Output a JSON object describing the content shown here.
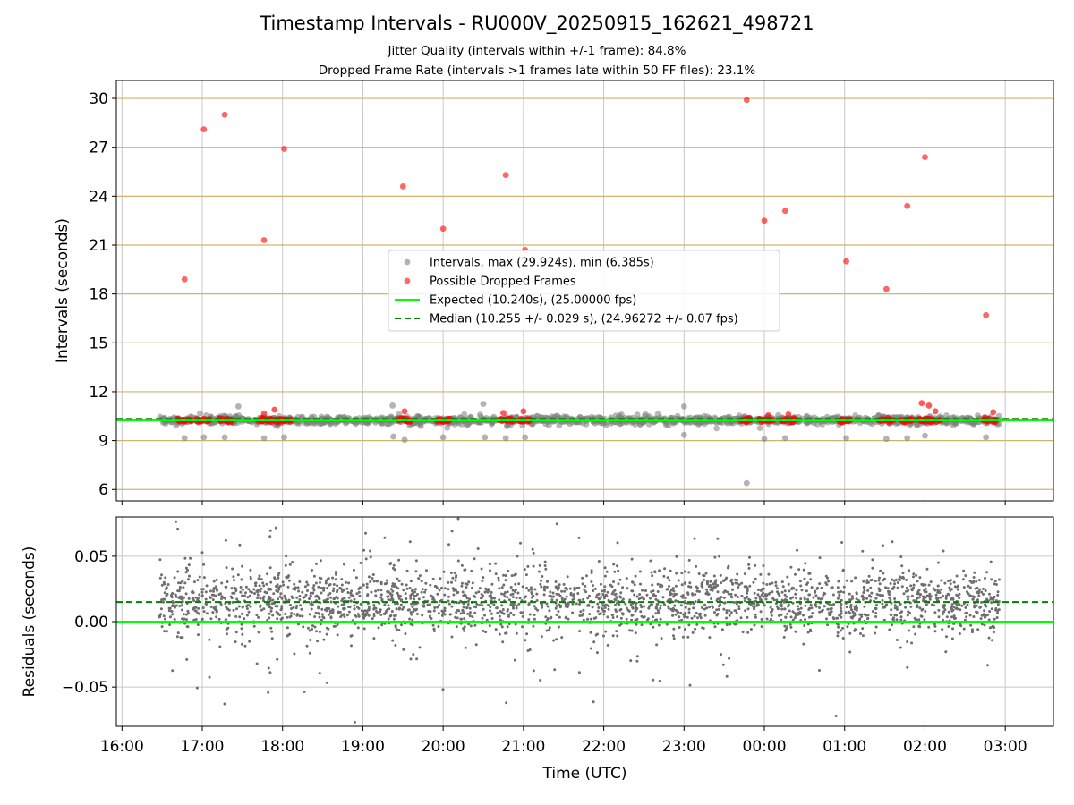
{
  "chart_data": [
    {
      "type": "scatter",
      "title": "Timestamp Intervals - RU000V_20250915_162621_498721",
      "subtitle_lines": [
        "Jitter Quality (intervals within +/-1 frame): 84.8%",
        "Dropped Frame Rate (intervals >1 frames late within 50 FF files): 23.1%"
      ],
      "ylabel": "Intervals (seconds)",
      "xlabel": "",
      "ylim": [
        5.3,
        31.1
      ],
      "xlim_hours_since_1600": [
        -0.07,
        11.6
      ],
      "yticks": [
        6,
        9,
        12,
        15,
        18,
        21,
        24,
        27,
        30
      ],
      "ytick_labels": [
        "6",
        "9",
        "12",
        "15",
        "18",
        "21",
        "24",
        "27",
        "30"
      ],
      "grid": true,
      "horizontal_grid_color": "#d4b36a",
      "expected_line": {
        "value": 10.24,
        "color": "#00ff00"
      },
      "median_line": {
        "value": 10.255,
        "color": "#008000"
      },
      "legend": {
        "placement": "center",
        "entries": [
          {
            "label": "Intervals, max (29.924s), min (6.385s)",
            "kind": "dot",
            "color": "#808080"
          },
          {
            "label": "Possible Dropped Frames",
            "kind": "dot",
            "color": "#ff0000"
          },
          {
            "label": "Expected (10.240s), (25.00000 fps)",
            "kind": "line",
            "color": "#00ff00"
          },
          {
            "label": "Median (10.255 +/- 0.029 s), (24.96272 +/- 0.07 fps)",
            "kind": "dashed",
            "color": "#008000"
          }
        ]
      },
      "dropped_outliers_hours": [
        [
          0.78,
          18.9
        ],
        [
          1.02,
          28.1
        ],
        [
          1.28,
          29.0
        ],
        [
          1.77,
          21.3
        ],
        [
          2.02,
          26.9
        ],
        [
          3.5,
          24.6
        ],
        [
          4.0,
          22.0
        ],
        [
          4.78,
          25.3
        ],
        [
          5.02,
          20.7
        ],
        [
          7.78,
          29.9
        ],
        [
          8.0,
          22.5
        ],
        [
          8.26,
          23.1
        ],
        [
          9.02,
          20.0
        ],
        [
          9.52,
          18.3
        ],
        [
          9.78,
          23.4
        ],
        [
          10.0,
          26.4
        ],
        [
          10.76,
          16.7
        ]
      ],
      "dropped_near_median_hours": [
        [
          1.77,
          10.65
        ],
        [
          1.9,
          10.9
        ],
        [
          3.52,
          10.8
        ],
        [
          4.75,
          10.7
        ],
        [
          5.0,
          10.8
        ],
        [
          8.05,
          10.55
        ],
        [
          8.3,
          10.6
        ],
        [
          9.96,
          11.3
        ],
        [
          10.05,
          11.15
        ],
        [
          10.13,
          10.8
        ],
        [
          10.85,
          10.75
        ]
      ],
      "gray_outliers_hours": [
        [
          0.78,
          9.15
        ],
        [
          1.02,
          9.2
        ],
        [
          1.28,
          9.2
        ],
        [
          1.45,
          11.1
        ],
        [
          1.77,
          9.15
        ],
        [
          2.02,
          9.2
        ],
        [
          3.37,
          11.15
        ],
        [
          3.38,
          9.25
        ],
        [
          3.52,
          9.05
        ],
        [
          4.0,
          9.2
        ],
        [
          4.5,
          11.25
        ],
        [
          4.52,
          9.2
        ],
        [
          4.78,
          9.15
        ],
        [
          5.02,
          9.2
        ],
        [
          7.0,
          11.1
        ],
        [
          7.0,
          9.35
        ],
        [
          7.78,
          6.39
        ],
        [
          8.0,
          9.1
        ],
        [
          8.26,
          9.15
        ],
        [
          9.02,
          9.15
        ],
        [
          9.52,
          9.1
        ],
        [
          9.78,
          9.15
        ],
        [
          10.0,
          9.3
        ],
        [
          10.76,
          9.2
        ]
      ],
      "dropped_frame_clusters_hours": [
        0.78,
        1.02,
        1.28,
        1.77,
        1.9,
        2.02,
        3.52,
        4.0,
        4.78,
        5.02,
        7.78,
        8.02,
        8.3,
        9.02,
        9.52,
        9.78,
        10.0,
        10.1,
        10.8
      ]
    },
    {
      "type": "scatter",
      "title": "",
      "ylabel": "Residuals (seconds)",
      "xlabel": "Time (UTC)",
      "ylim": [
        -0.08,
        0.08
      ],
      "xlim_hours_since_1600": [
        -0.07,
        11.6
      ],
      "yticks": [
        -0.05,
        0.0,
        0.05
      ],
      "ytick_labels": [
        "−0.05",
        "0.00",
        "0.05"
      ],
      "xticks_hours": [
        0,
        1,
        2,
        3,
        4,
        5,
        6,
        7,
        8,
        9,
        10,
        11
      ],
      "xtick_labels": [
        "16:00",
        "17:00",
        "18:00",
        "19:00",
        "20:00",
        "21:00",
        "22:00",
        "23:00",
        "00:00",
        "01:00",
        "02:00",
        "03:00"
      ],
      "grid": true,
      "zero_line": {
        "value": 0.0,
        "color": "#00ff00"
      },
      "median_offset_line": {
        "value": 0.015,
        "color": "#008000"
      },
      "data_span_hours": [
        0.46,
        10.93
      ],
      "residual_center": 0.015,
      "residual_spread": 0.012,
      "point_color": "#6e6e6e"
    }
  ]
}
